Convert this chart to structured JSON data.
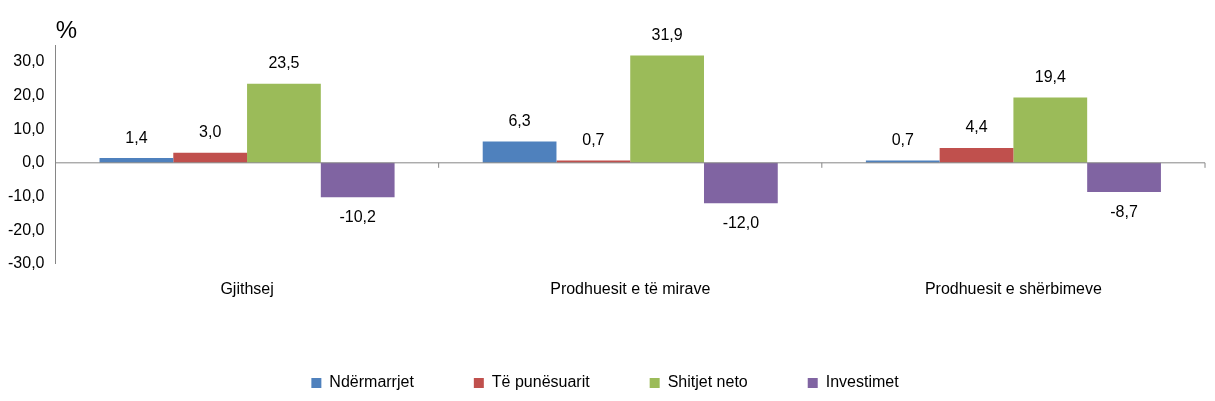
{
  "chart_data": {
    "type": "bar",
    "ylabel": "%",
    "categories": [
      "Gjithsej",
      "Prodhuesit e të mirave",
      "Prodhuesit e shërbimeve"
    ],
    "series": [
      {
        "name": "Ndërmarrjet",
        "color": "#4f81bd",
        "values": [
          1.4,
          6.3,
          0.7
        ],
        "value_labels": [
          "1,4",
          "6,3",
          "0,7"
        ]
      },
      {
        "name": "Të punësuarit",
        "color": "#c0504d",
        "values": [
          3.0,
          0.7,
          4.4
        ],
        "value_labels": [
          "3,0",
          "0,7",
          "4,4"
        ]
      },
      {
        "name": "Shitjet neto",
        "color": "#9bbb59",
        "values": [
          23.5,
          31.9,
          19.4
        ],
        "value_labels": [
          "23,5",
          "31,9",
          "19,4"
        ]
      },
      {
        "name": "Investimet",
        "color": "#8064a2",
        "values": [
          -10.2,
          -12.0,
          -8.7
        ],
        "value_labels": [
          "-10,2",
          "-12,0",
          "-8,7"
        ]
      }
    ],
    "ylim": [
      -30,
      35
    ],
    "yticks": [
      {
        "value": -30,
        "label": "-30,0"
      },
      {
        "value": -20,
        "label": "-20,0"
      },
      {
        "value": -10,
        "label": "-10,0"
      },
      {
        "value": 0,
        "label": "0,0"
      },
      {
        "value": 10,
        "label": "10,0"
      },
      {
        "value": 20,
        "label": "20,0"
      },
      {
        "value": 30,
        "label": "30,0"
      }
    ],
    "legend": "bottom"
  }
}
